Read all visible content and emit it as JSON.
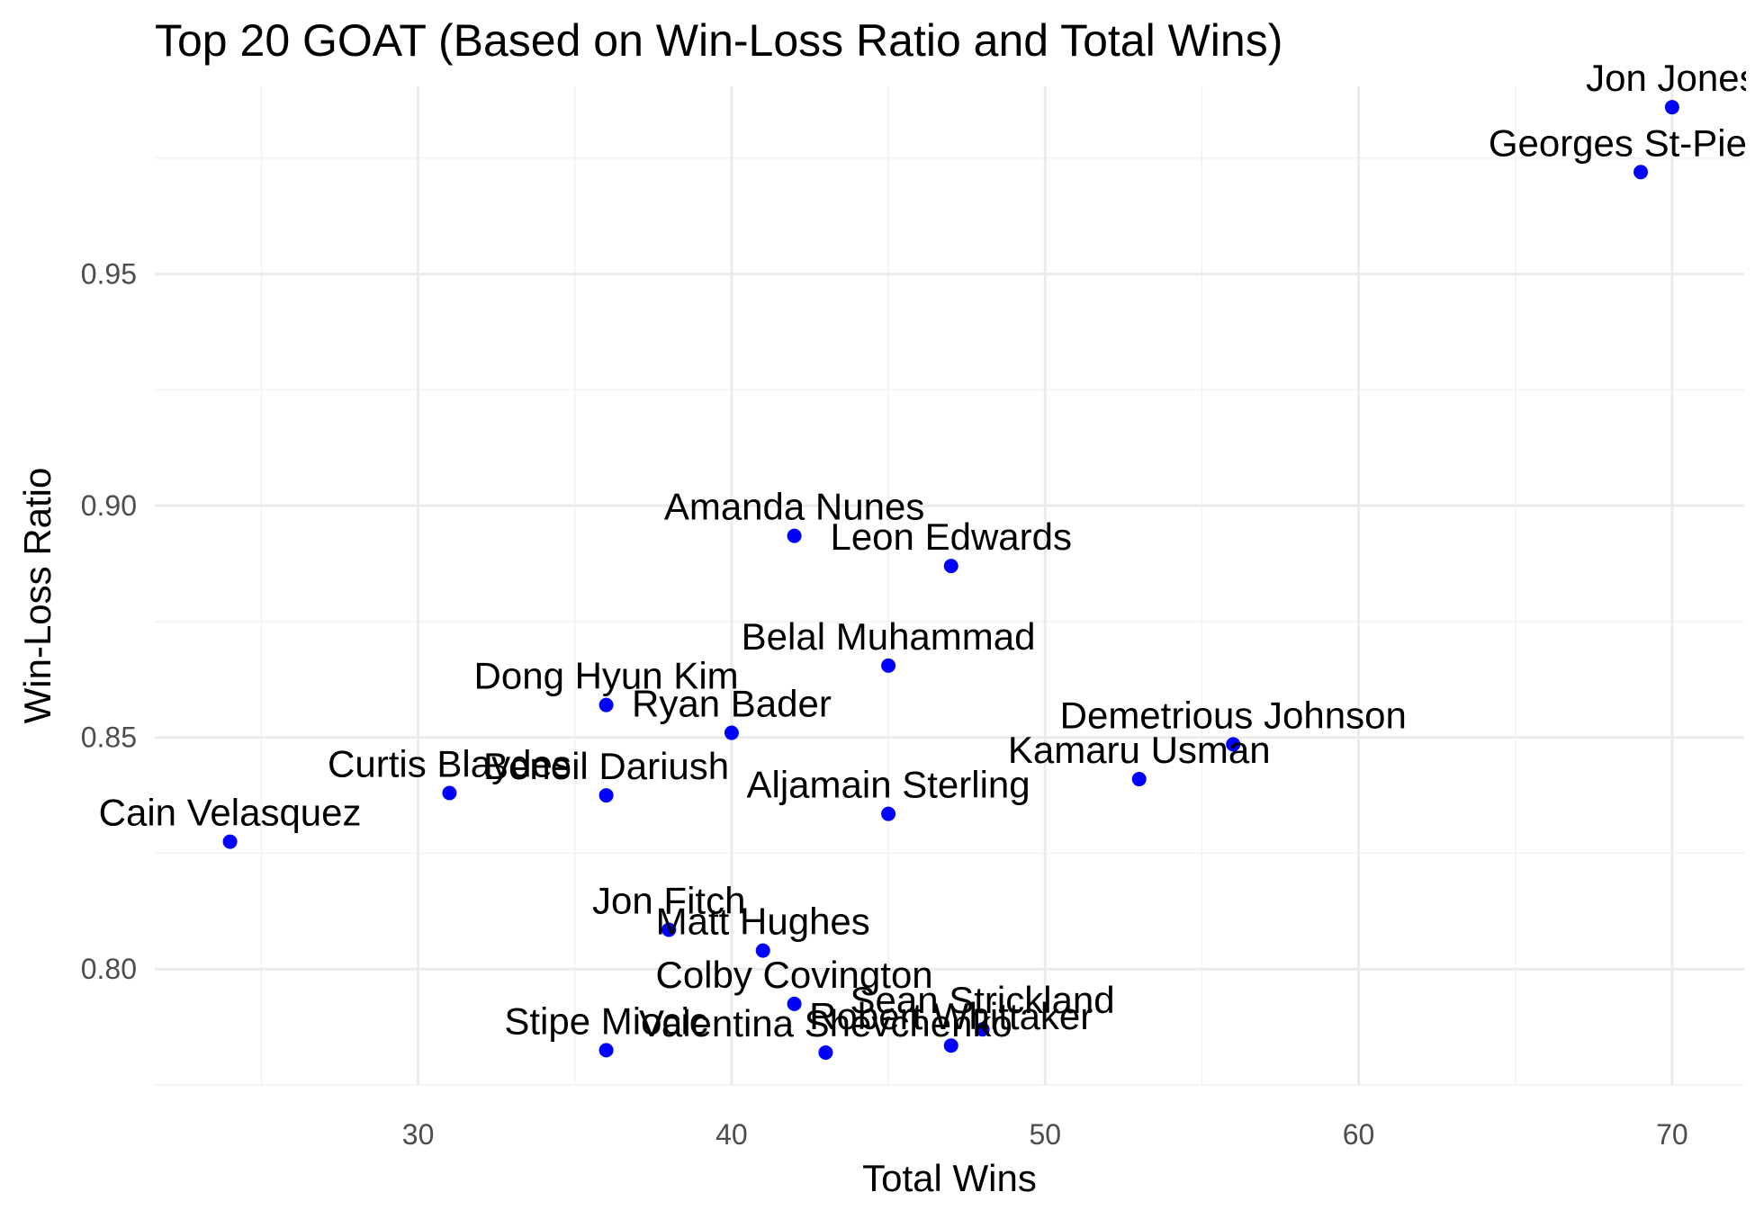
{
  "chart_data": {
    "type": "scatter",
    "title": "Top 20 GOAT (Based on Win-Loss Ratio and Total Wins)",
    "xlabel": "Total Wins",
    "ylabel": "Win-Loss Ratio",
    "xlim": [
      21.6,
      72.3
    ],
    "ylim": [
      0.775,
      0.9905
    ],
    "x_ticks": [
      30,
      40,
      50,
      60,
      70
    ],
    "y_ticks": [
      0.8,
      0.85,
      0.9,
      0.95
    ],
    "x_tick_labels": [
      "30",
      "40",
      "50",
      "60",
      "70"
    ],
    "y_tick_labels": [
      "0.80",
      "0.85",
      "0.90",
      "0.95"
    ],
    "grid": true,
    "point_color": "#0000ff",
    "points": [
      {
        "name": "Jon Jones",
        "x": 70,
        "y": 0.986
      },
      {
        "name": "Georges St-Pierre",
        "x": 69,
        "y": 0.972
      },
      {
        "name": "Amanda Nunes",
        "x": 42,
        "y": 0.8935
      },
      {
        "name": "Leon Edwards",
        "x": 47,
        "y": 0.887
      },
      {
        "name": "Belal Muhammad",
        "x": 45,
        "y": 0.8655
      },
      {
        "name": "Dong Hyun Kim",
        "x": 36,
        "y": 0.857
      },
      {
        "name": "Ryan Bader",
        "x": 40,
        "y": 0.851
      },
      {
        "name": "Demetrious Johnson",
        "x": 56,
        "y": 0.8485
      },
      {
        "name": "Kamaru Usman",
        "x": 53,
        "y": 0.841
      },
      {
        "name": "Curtis Blaydes",
        "x": 31,
        "y": 0.838
      },
      {
        "name": "Beneil Dariush",
        "x": 36,
        "y": 0.8375
      },
      {
        "name": "Aljamain Sterling",
        "x": 45,
        "y": 0.8335
      },
      {
        "name": "Cain Velasquez",
        "x": 24,
        "y": 0.8275
      },
      {
        "name": "Jon Fitch",
        "x": 38,
        "y": 0.8085
      },
      {
        "name": "Matt Hughes",
        "x": 41,
        "y": 0.804
      },
      {
        "name": "Colby Covington",
        "x": 42,
        "y": 0.7925
      },
      {
        "name": "Sean Strickland",
        "x": 48,
        "y": 0.787
      },
      {
        "name": "Robert Whittaker",
        "x": 47,
        "y": 0.7835
      },
      {
        "name": "Stipe Miocic",
        "x": 36,
        "y": 0.7825
      },
      {
        "name": "Valentina Shevchenko",
        "x": 43,
        "y": 0.782
      }
    ]
  }
}
